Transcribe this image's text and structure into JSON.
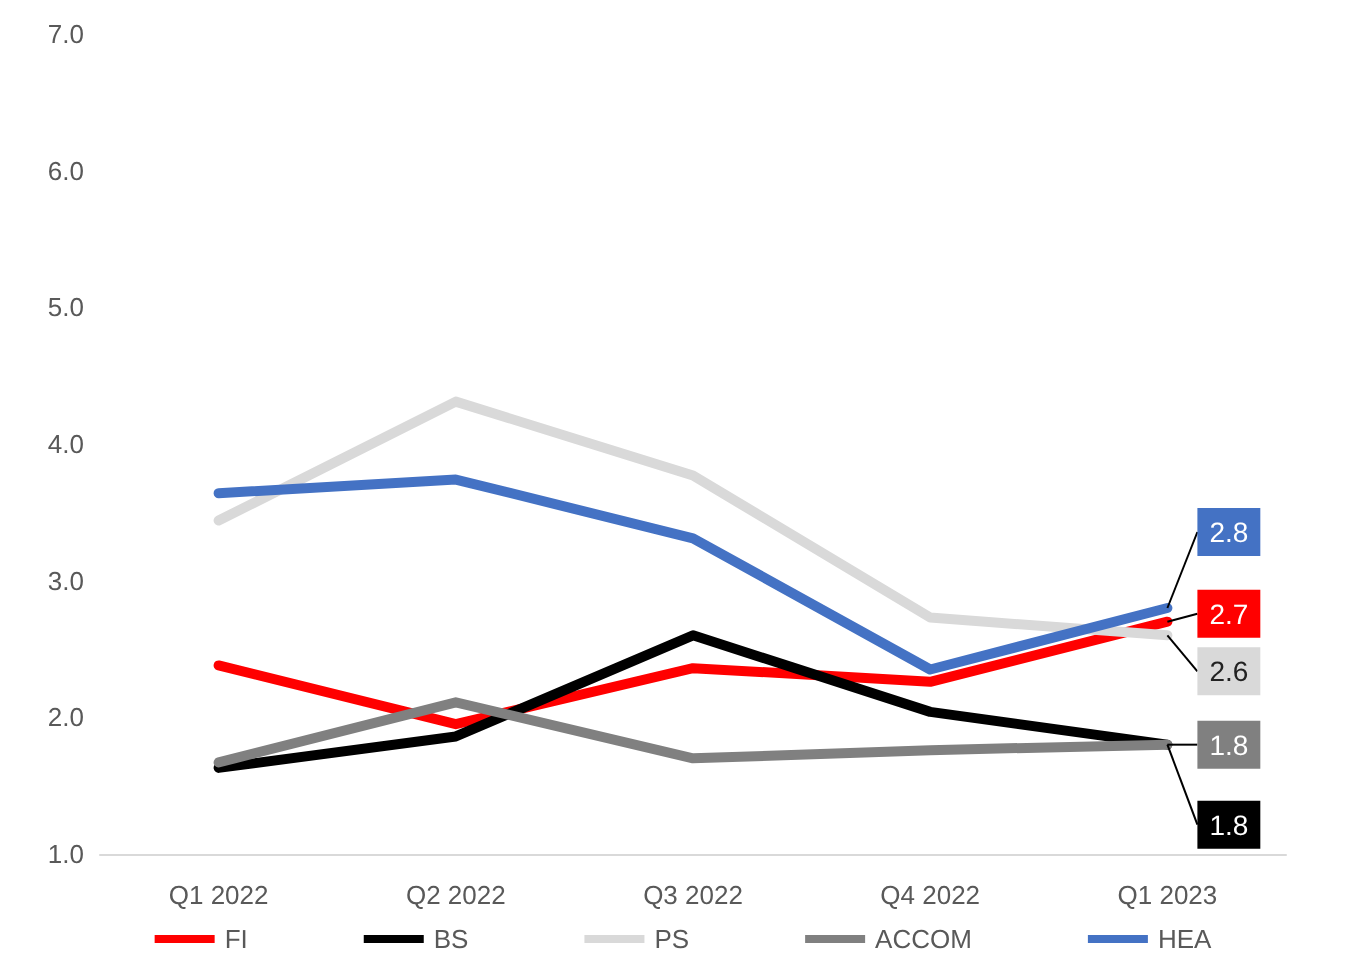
{
  "chart_data": {
    "type": "line",
    "categories": [
      "Q1 2022",
      "Q2 2022",
      "Q3 2022",
      "Q4 2022",
      "Q1 2023"
    ],
    "series": [
      {
        "name": "FI",
        "color": "#ff0000",
        "values": [
          2.38,
          1.95,
          2.36,
          2.26,
          2.7
        ],
        "value_labels": [
          null,
          null,
          null,
          null,
          "2.7"
        ]
      },
      {
        "name": "BS",
        "color": "#000000",
        "values": [
          1.63,
          1.86,
          2.6,
          2.04,
          1.8
        ],
        "value_labels": [
          null,
          null,
          null,
          null,
          "1.8"
        ]
      },
      {
        "name": "PS",
        "color": "#d9d9d9",
        "values": [
          3.44,
          4.31,
          3.77,
          2.73,
          2.6
        ],
        "value_labels": [
          null,
          null,
          null,
          null,
          "2.6"
        ]
      },
      {
        "name": "ACCOM",
        "color": "#808080",
        "values": [
          1.67,
          2.11,
          1.7,
          1.76,
          1.8
        ],
        "value_labels": [
          null,
          null,
          null,
          null,
          "1.8"
        ]
      },
      {
        "name": "HEA",
        "color": "#4472c4",
        "values": [
          3.64,
          3.74,
          3.31,
          2.35,
          2.8
        ],
        "value_labels": [
          null,
          null,
          null,
          null,
          "2.8"
        ]
      }
    ],
    "ylim": [
      1,
      7
    ],
    "yticks": [
      {
        "value": 1,
        "label": "1.0"
      },
      {
        "value": 2,
        "label": "2.0"
      },
      {
        "value": 3,
        "label": "3.0"
      },
      {
        "value": 4,
        "label": "4.0"
      },
      {
        "value": 5,
        "label": "5.0"
      },
      {
        "value": 6,
        "label": "6.0"
      },
      {
        "value": 7,
        "label": "7.0"
      }
    ],
    "grid": false,
    "legend": "bottom",
    "marker": "none",
    "line_style": "solid"
  }
}
